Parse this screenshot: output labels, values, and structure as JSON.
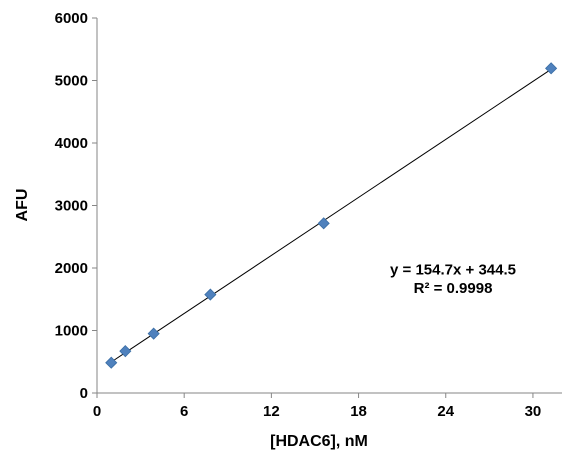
{
  "chart_data": {
    "type": "scatter",
    "title": "",
    "xlabel": "[HDAC6], nM",
    "ylabel": "AFU",
    "xlim": [
      0,
      32
    ],
    "ylim": [
      0,
      6000
    ],
    "x_ticks": [
      0,
      6,
      12,
      18,
      24,
      30
    ],
    "y_ticks": [
      0,
      1000,
      2000,
      3000,
      4000,
      5000,
      6000
    ],
    "grid": false,
    "legend": "none",
    "series": [
      {
        "marker": "diamond",
        "color": "#4f81bd",
        "x": [
          0.98,
          1.95,
          3.9,
          7.8,
          15.6,
          31.25
        ],
        "y": [
          485,
          670,
          950,
          1575,
          2715,
          5195
        ]
      }
    ],
    "trendline": {
      "slope": 154.7,
      "intercept": 344.5,
      "color": "#000000"
    },
    "annotations": [
      {
        "text": "y = 154.7x + 344.5",
        "x": 24.5,
        "y": 1900
      },
      {
        "text": "R² = 0.9998",
        "x": 24.5,
        "y": 1600
      }
    ]
  }
}
